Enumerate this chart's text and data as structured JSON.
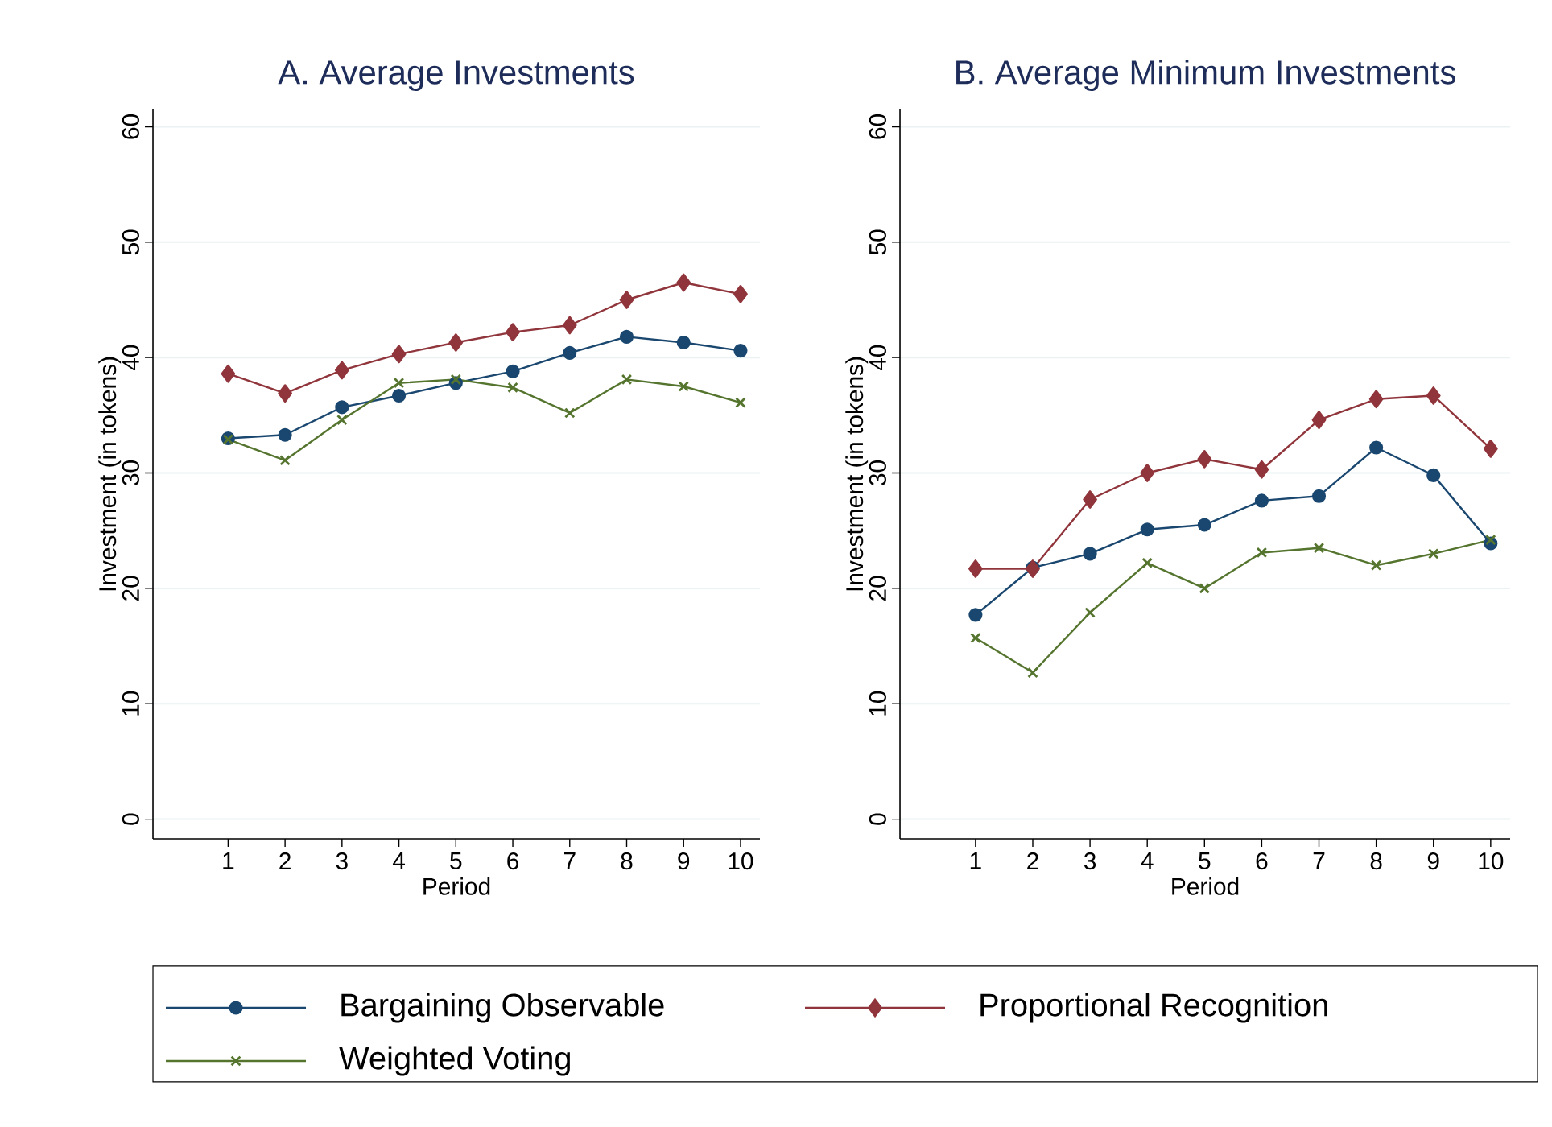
{
  "chart_data": [
    {
      "type": "line",
      "title": "A. Average Investments",
      "xlabel": "Period",
      "ylabel": "Investment (in tokens)",
      "x": [
        1,
        2,
        3,
        4,
        5,
        6,
        7,
        8,
        9,
        10
      ],
      "xlim": [
        -0.32,
        10.34
      ],
      "ylim": [
        -1.7,
        61.5
      ],
      "xticks": [
        1,
        2,
        3,
        4,
        5,
        6,
        7,
        8,
        9,
        10
      ],
      "yticks": [
        0,
        10,
        20,
        30,
        40,
        50,
        60
      ],
      "grid": "y",
      "legend": "bottom",
      "series": [
        {
          "name": "Bargaining Observable",
          "color": "#1a476f",
          "marker": "circle",
          "values": [
            33.0,
            33.3,
            35.7,
            36.7,
            37.8,
            38.8,
            40.4,
            41.8,
            41.3,
            40.6
          ]
        },
        {
          "name": "Proportional Recognition",
          "color": "#90353b",
          "marker": "diamond",
          "values": [
            38.6,
            36.9,
            38.9,
            40.3,
            41.3,
            42.2,
            42.8,
            45.0,
            46.5,
            45.5
          ]
        },
        {
          "name": "Weighted Voting",
          "color": "#55752f",
          "marker": "cross",
          "values": [
            32.9,
            31.1,
            34.6,
            37.8,
            38.1,
            37.4,
            35.2,
            38.1,
            37.5,
            36.1
          ]
        }
      ]
    },
    {
      "type": "line",
      "title": "B. Average Minimum Investments",
      "xlabel": "Period",
      "ylabel": "Investment (in tokens)",
      "x": [
        1,
        2,
        3,
        4,
        5,
        6,
        7,
        8,
        9,
        10
      ],
      "xlim": [
        -0.32,
        10.34
      ],
      "ylim": [
        -1.7,
        61.5
      ],
      "xticks": [
        1,
        2,
        3,
        4,
        5,
        6,
        7,
        8,
        9,
        10
      ],
      "yticks": [
        0,
        10,
        20,
        30,
        40,
        50,
        60
      ],
      "grid": "y",
      "series": [
        {
          "color": "#1a476f",
          "marker": "circle",
          "values": [
            17.7,
            21.8,
            23.0,
            25.1,
            25.5,
            27.6,
            28.0,
            32.2,
            29.8,
            23.9
          ]
        },
        {
          "color": "#90353b",
          "marker": "diamond",
          "values": [
            21.7,
            21.7,
            27.7,
            30.0,
            31.2,
            30.3,
            34.6,
            36.4,
            36.7,
            32.1
          ]
        },
        {
          "color": "#55752f",
          "marker": "cross",
          "values": [
            15.7,
            12.7,
            17.9,
            22.2,
            20.0,
            23.1,
            23.5,
            22.0,
            23.0,
            24.2
          ]
        }
      ]
    }
  ]
}
